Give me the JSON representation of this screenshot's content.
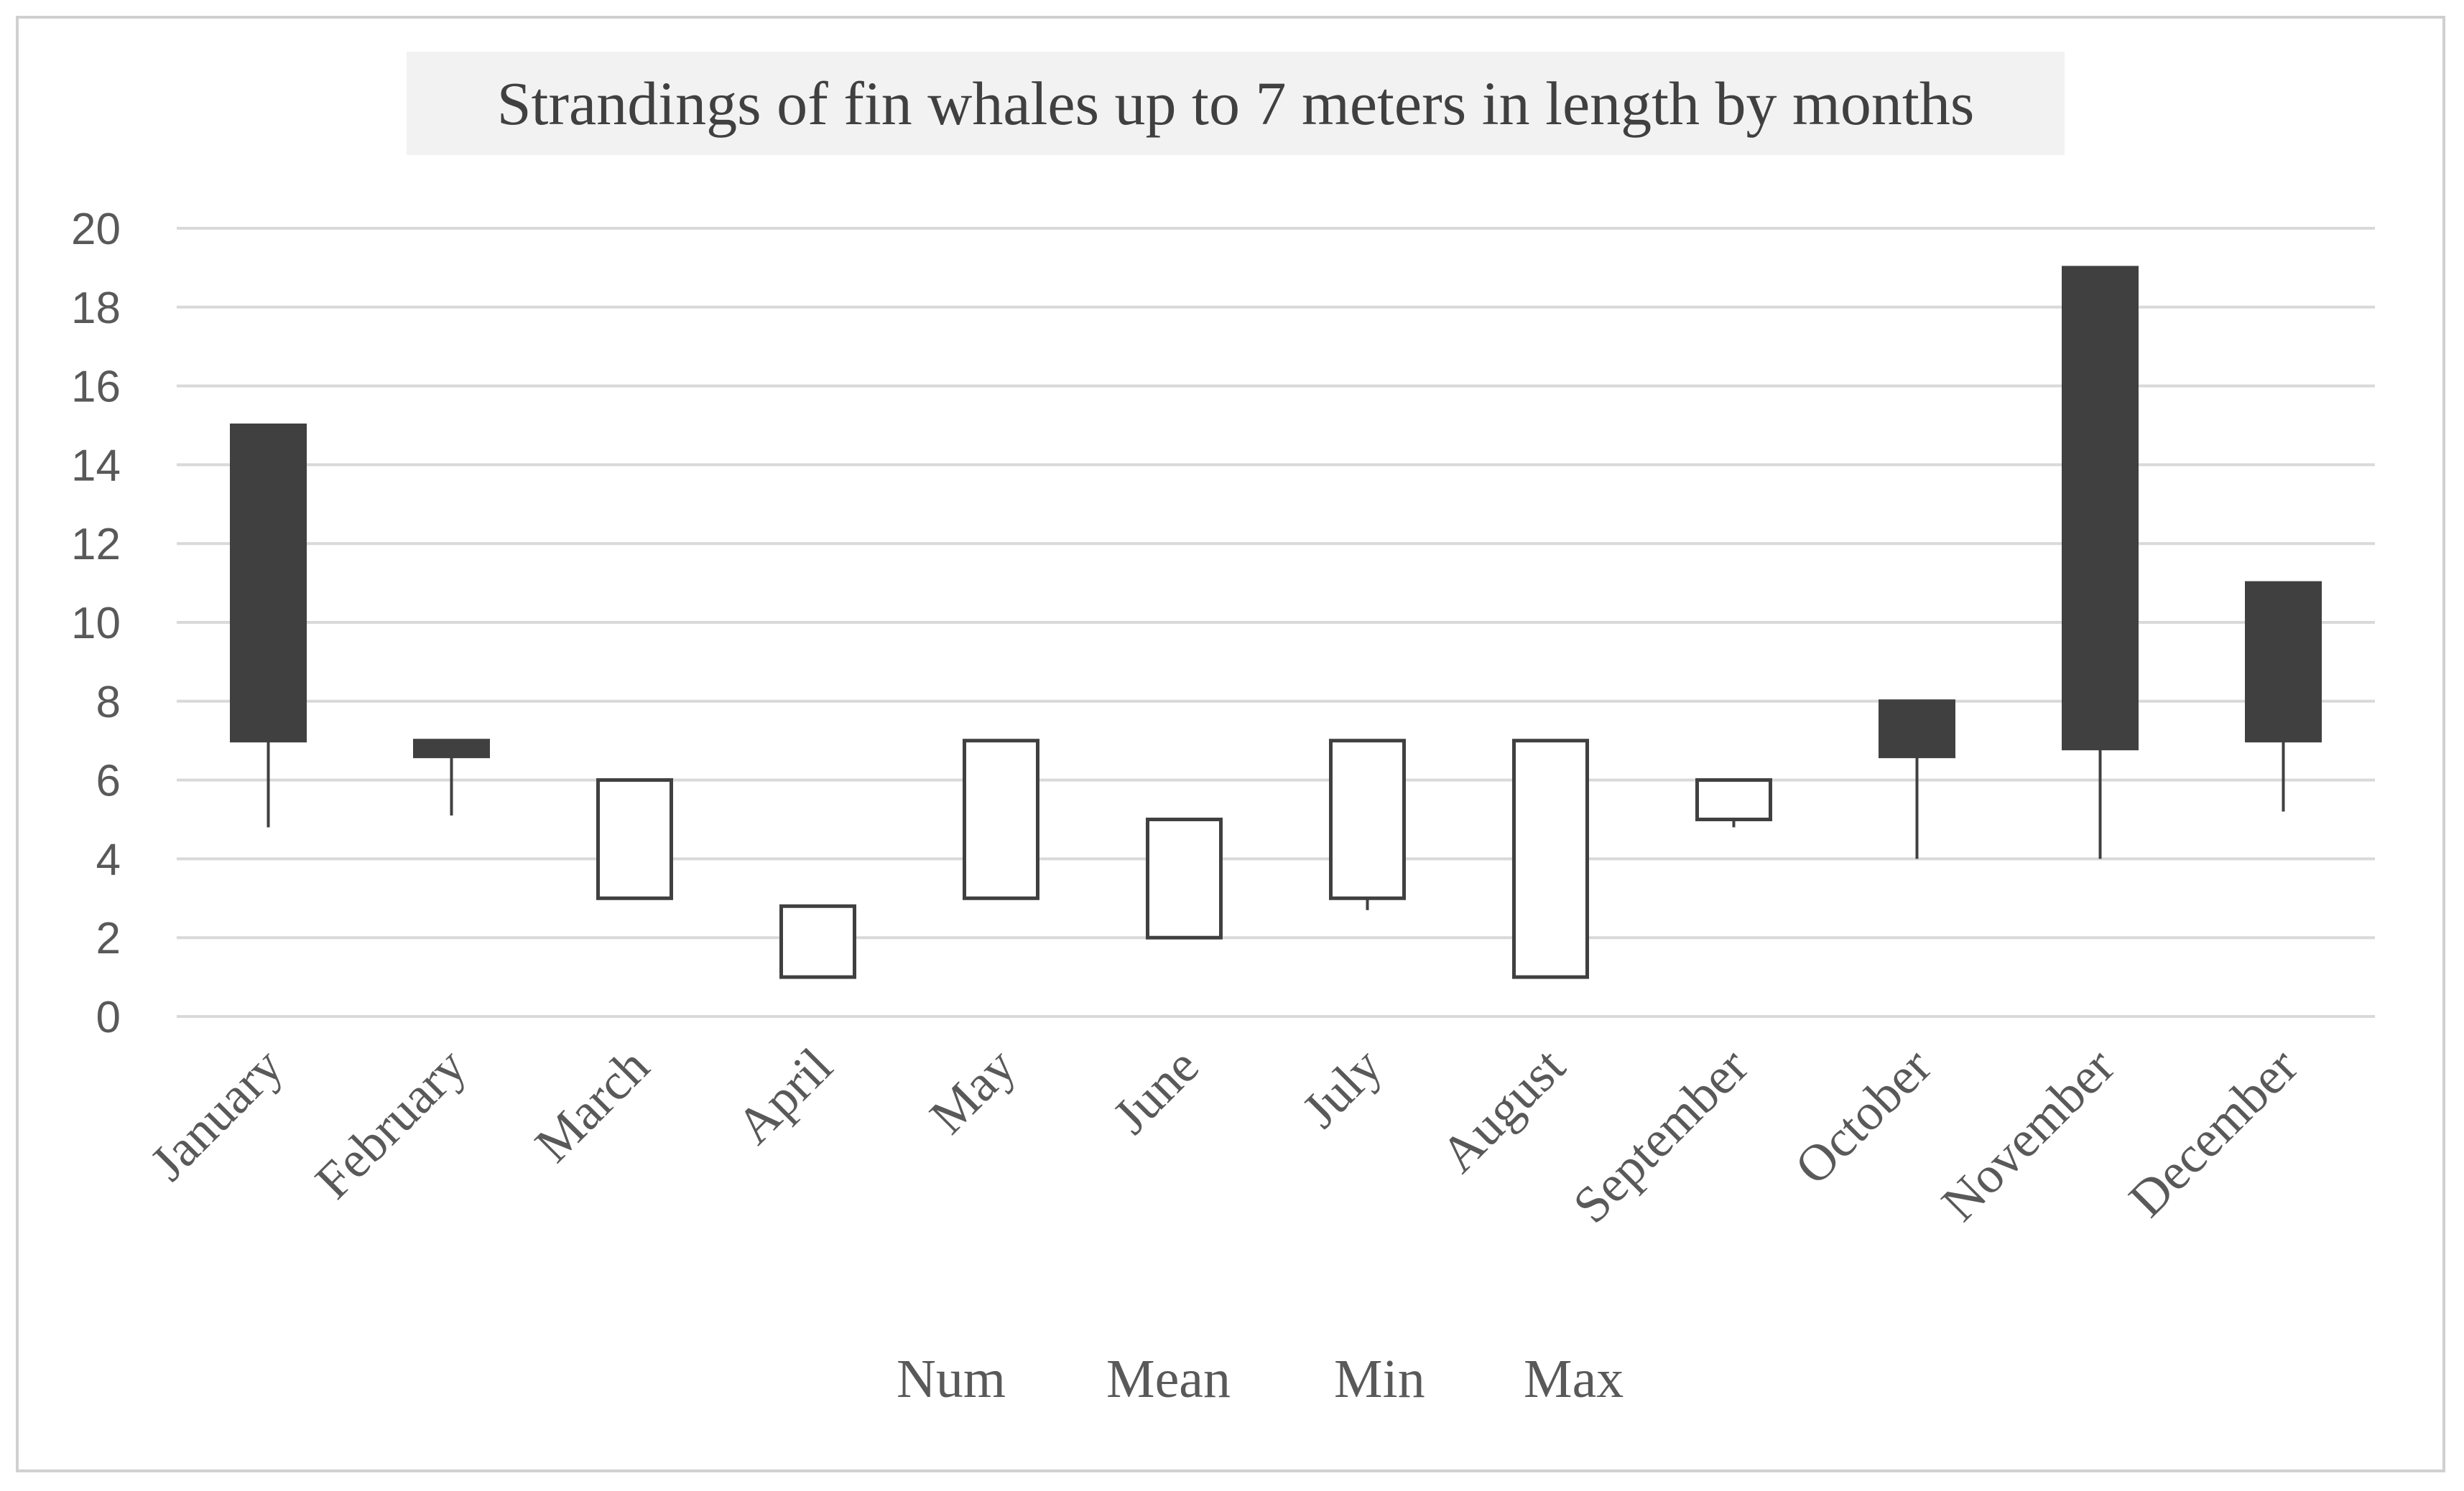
{
  "chart_data": {
    "type": "candlestick",
    "title": "Strandings of fin whales up to 7 meters in length by months",
    "xlabel": "",
    "ylabel": "",
    "ylim": [
      0,
      20
    ],
    "yticks": [
      0,
      2,
      4,
      6,
      8,
      10,
      12,
      14,
      16,
      18,
      20
    ],
    "grid": true,
    "legend_position": "bottom",
    "legend": [
      "Num",
      "Mean",
      "Min",
      "Max"
    ],
    "colors": {
      "down_fill": "#404040",
      "up_fill": "#ffffff",
      "stroke": "#404040",
      "grid": "#d9d9d9"
    },
    "categories": [
      "January",
      "February",
      "March",
      "April",
      "May",
      "June",
      "July",
      "August",
      "September",
      "October",
      "November",
      "December"
    ],
    "open": [
      15,
      7,
      3,
      1,
      3,
      2,
      3,
      1,
      5,
      8,
      19,
      11
    ],
    "close": [
      7,
      6.6,
      6,
      2.8,
      7,
      5,
      7,
      7,
      6,
      6.6,
      6.8,
      7
    ],
    "high": [
      15,
      7,
      6,
      2.8,
      7,
      5,
      7,
      7,
      6,
      8,
      19,
      11
    ],
    "low": [
      4.8,
      5.1,
      3,
      1,
      3,
      2,
      2.7,
      1,
      4.8,
      4,
      4,
      5.2
    ]
  }
}
